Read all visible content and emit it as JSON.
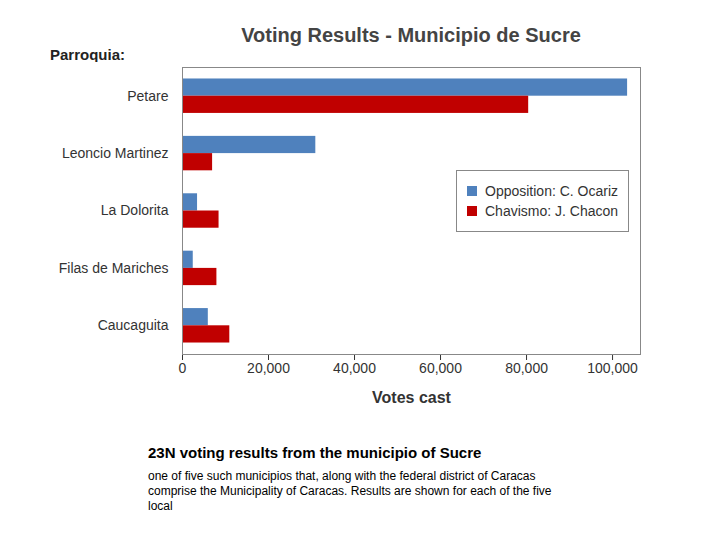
{
  "chart_data": {
    "type": "bar",
    "orientation": "horizontal",
    "title": "Voting Results - Municipio de Sucre",
    "y_label": "Parroquia:",
    "x_label": "Votes cast",
    "categories": [
      "Petare",
      "Leoncio Martinez",
      "La Dolorita",
      "Filas de Mariches",
      "Caucaguita"
    ],
    "series": [
      {
        "name": "Opposition: C. Ocariz",
        "color": "#4f81bd",
        "values": [
          103500,
          31000,
          3500,
          2500,
          6000
        ]
      },
      {
        "name": "Chavismo: J. Chacon",
        "color": "#c00000",
        "values": [
          80500,
          7000,
          8500,
          8000,
          11000
        ]
      }
    ],
    "xlim": [
      0,
      106500
    ],
    "xticks": [
      0,
      {
        "value": 20000,
        "label": "20,000"
      },
      {
        "value": 40000,
        "label": "40,000"
      },
      {
        "value": 60000,
        "label": "60,000"
      },
      {
        "value": 80000,
        "label": "80,000"
      },
      {
        "value": 100000,
        "label": "100,000"
      }
    ],
    "grid": false,
    "legend": "right",
    "caption": [
      "23N voting results from the municipio of Sucre",
      "one of five such municipios that, along with the federal district of Caracas comprise the Municipality of Caracas.  Results are shown for each of the five local"
    ]
  }
}
